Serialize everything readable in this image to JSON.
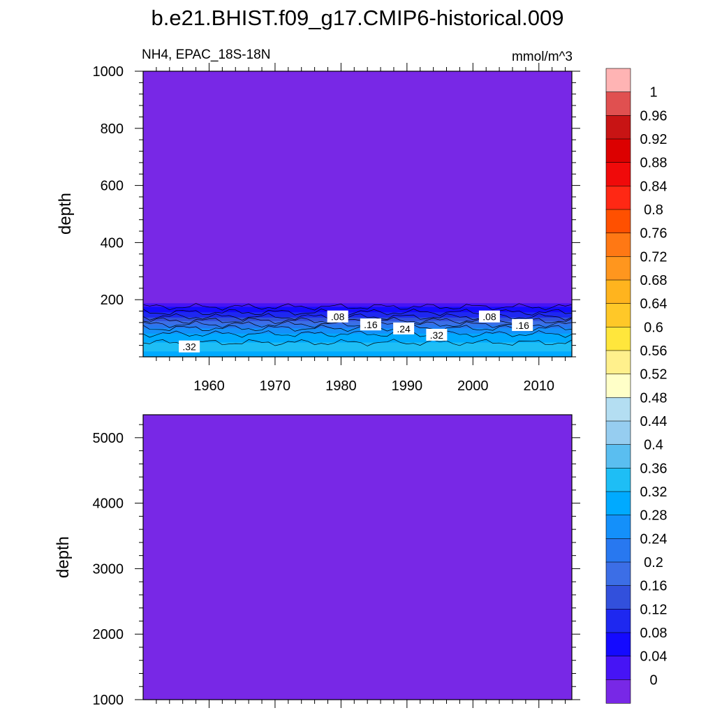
{
  "title": "b.e21.BHIST.f09_g17.CMIP6-historical.009",
  "subtitle_left": "NH4, EPAC_18S-18N",
  "subtitle_right": "mmol/m^3",
  "chart_data": [
    {
      "type": "heatmap",
      "panel": "upper",
      "xlabel": "",
      "ylabel": "depth",
      "xlim": [
        1950,
        2015
      ],
      "ylim": [
        1000,
        0
      ],
      "xticks": [
        1960,
        1970,
        1980,
        1990,
        2000,
        2010
      ],
      "yticks": [
        200,
        400,
        600,
        800,
        1000
      ],
      "contour_labels": [
        {
          "text": ".32",
          "year": 1957,
          "depth": 35
        },
        {
          "text": ".08",
          "year": 1979.5,
          "depth": 140
        },
        {
          "text": ".16",
          "year": 1984.5,
          "depth": 112
        },
        {
          "text": ".24",
          "year": 1989.5,
          "depth": 98
        },
        {
          "text": ".32",
          "year": 1994.5,
          "depth": 76
        },
        {
          "text": ".08",
          "year": 2002.5,
          "depth": 140
        },
        {
          "text": ".16",
          "year": 2007.5,
          "depth": 110
        }
      ],
      "profile": {
        "depth": [
          0,
          20,
          40,
          60,
          80,
          100,
          120,
          140,
          160,
          180,
          190,
          1000
        ],
        "value": [
          0.3,
          0.32,
          0.33,
          0.31,
          0.28,
          0.24,
          0.18,
          0.12,
          0.07,
          0.03,
          0.0,
          0.0
        ]
      }
    },
    {
      "type": "heatmap",
      "panel": "lower",
      "xlabel": "",
      "ylabel": "depth",
      "xlim": [
        1950,
        2015
      ],
      "ylim": [
        5350,
        1000
      ],
      "yticks": [
        1000,
        2000,
        3000,
        4000,
        5000
      ],
      "profile": {
        "depth": [
          1000,
          5350
        ],
        "value": [
          0.0,
          0.0
        ]
      }
    }
  ],
  "colorbar": {
    "labels": [
      "1",
      "0.96",
      "0.92",
      "0.88",
      "0.84",
      "0.8",
      "0.76",
      "0.72",
      "0.68",
      "0.64",
      "0.6",
      "0.56",
      "0.52",
      "0.48",
      "0.44",
      "0.4",
      "0.36",
      "0.32",
      "0.28",
      "0.24",
      "0.2",
      "0.16",
      "0.12",
      "0.08",
      "0.04",
      "0"
    ],
    "colors": [
      "#ffb4b4",
      "#e05050",
      "#c81414",
      "#dc0000",
      "#f00a0a",
      "#ff2814",
      "#ff5000",
      "#ff7814",
      "#ff961e",
      "#ffb41e",
      "#ffc828",
      "#ffe63c",
      "#fff08c",
      "#ffffc8",
      "#b4def2",
      "#96cdf0",
      "#5abef0",
      "#1ebef5",
      "#00aaff",
      "#1490fa",
      "#2878f0",
      "#3c6ee6",
      "#3250dc",
      "#1e28f0",
      "#140aff",
      "#4614f5",
      "#7828e6"
    ]
  }
}
